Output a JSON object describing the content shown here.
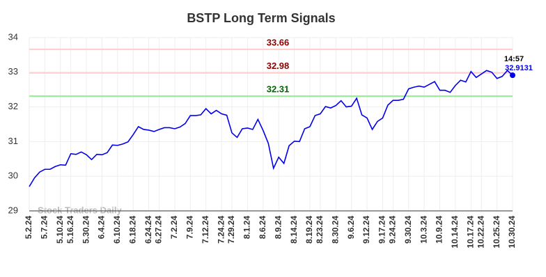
{
  "chart_data": {
    "type": "line",
    "title": "BSTP Long Term Signals",
    "watermark": "Stock Traders Daily",
    "categories": [
      "5.2.24",
      null,
      null,
      "5.7.24",
      null,
      null,
      "5.10.24",
      null,
      "5.16.24",
      null,
      null,
      "5.30.24",
      null,
      null,
      "6.4.24",
      null,
      null,
      "6.10.24",
      null,
      null,
      "6.18.24",
      null,
      null,
      "6.24.24",
      null,
      "6.27.24",
      null,
      null,
      "7.2.24",
      null,
      null,
      "7.9.24",
      null,
      null,
      "7.12.24",
      null,
      null,
      "7.24.24",
      null,
      "7.29.24",
      null,
      null,
      "8.1.24",
      null,
      null,
      "8.6.24",
      null,
      null,
      "8.9.24",
      null,
      null,
      "8.14.24",
      null,
      null,
      "8.19.24",
      null,
      "8.23.24",
      null,
      null,
      "8.30.24",
      null,
      null,
      "9.6.24",
      null,
      null,
      "9.12.24",
      null,
      null,
      "9.17.24",
      null,
      "9.24.24",
      null,
      null,
      "9.30.24",
      null,
      null,
      "10.3.24",
      null,
      null,
      "10.9.24",
      null,
      null,
      "10.14.24",
      null,
      null,
      "10.17.24",
      null,
      "10.22.24",
      null,
      null,
      "10.25.24",
      null,
      null,
      "10.30.24"
    ],
    "series": [
      {
        "color": "#0000ee",
        "values": [
          29.7,
          29.95,
          30.12,
          30.2,
          30.2,
          30.28,
          30.33,
          30.32,
          30.65,
          30.63,
          30.7,
          30.62,
          30.48,
          30.63,
          30.62,
          30.68,
          30.9,
          30.89,
          30.93,
          30.99,
          31.2,
          31.43,
          31.35,
          31.33,
          31.29,
          31.35,
          31.4,
          31.4,
          31.37,
          31.42,
          31.52,
          31.75,
          31.75,
          31.77,
          31.95,
          31.8,
          31.9,
          31.8,
          31.76,
          31.25,
          31.12,
          31.37,
          31.39,
          31.35,
          31.64,
          31.32,
          30.95,
          30.23,
          30.55,
          30.37,
          30.88,
          31.01,
          31.0,
          31.37,
          31.43,
          31.75,
          31.8,
          32.01,
          31.97,
          32.04,
          32.18,
          32.0,
          32.02,
          32.25,
          31.77,
          31.68,
          31.35,
          31.58,
          31.68,
          32.05,
          32.19,
          32.19,
          32.22,
          32.52,
          32.57,
          32.6,
          32.57,
          32.65,
          32.73,
          32.48,
          32.48,
          32.42,
          32.62,
          32.77,
          32.72,
          33.02,
          32.85,
          32.95,
          33.05,
          33.0,
          32.82,
          32.88,
          33.05,
          32.9131
        ]
      }
    ],
    "last_time": "14:57",
    "hlines": [
      {
        "value": 33.66,
        "label": "33.66",
        "color": "#ffcccc",
        "label_color": "#8b0000"
      },
      {
        "value": 32.98,
        "label": "32.98",
        "color": "#ffcccc",
        "label_color": "#8b0000"
      },
      {
        "value": 32.31,
        "label": "32.31",
        "color": "#90ee90",
        "label_color": "#006400"
      }
    ],
    "ylim": [
      29,
      34
    ],
    "yticks": [
      29,
      30,
      31,
      32,
      33,
      34
    ],
    "grid": true
  }
}
